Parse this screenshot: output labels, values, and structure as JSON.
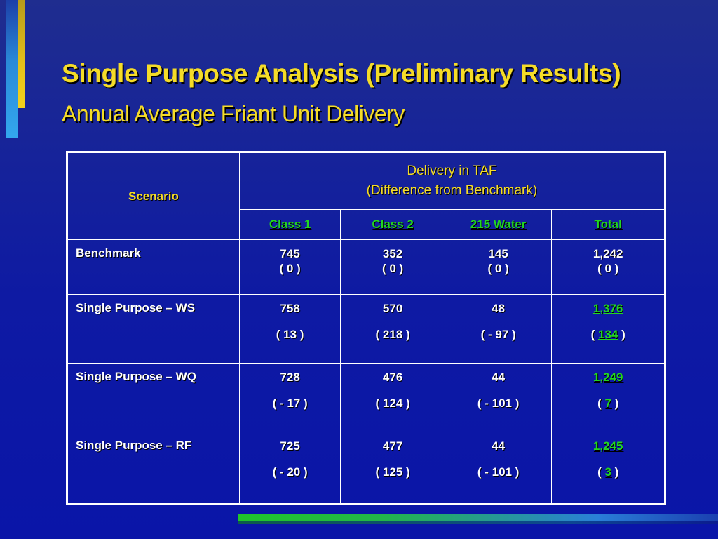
{
  "title": "Single Purpose Analysis (Preliminary Results)",
  "subtitle": "Annual Average Friant Unit Delivery",
  "table": {
    "scenario_header": "Scenario",
    "delivery_header_line1": "Delivery in TAF",
    "delivery_header_line2": "(Difference from Benchmark)",
    "columns": [
      "Class 1",
      "Class 2",
      "215 Water",
      "Total"
    ],
    "rows": [
      {
        "label": "Benchmark",
        "values": [
          "745",
          "352",
          "145",
          "1,242"
        ],
        "diffs": [
          "( 0 )",
          "( 0 )",
          "( 0 )",
          "( 0 )"
        ]
      },
      {
        "label": "Single Purpose – WS",
        "values": [
          "758",
          "570",
          "48",
          "1,376"
        ],
        "diffs": [
          "( 13 )",
          "( 218 )",
          "( - 97 )",
          "134"
        ]
      },
      {
        "label": "Single Purpose – WQ",
        "values": [
          "728",
          "476",
          "44",
          "1,249"
        ],
        "diffs": [
          "( - 17 )",
          "( 124 )",
          "( - 101 )",
          "7"
        ]
      },
      {
        "label": "Single Purpose – RF",
        "values": [
          "725",
          "477",
          "44",
          "1,245"
        ],
        "diffs": [
          "( - 20 )",
          "( 125 )",
          "( - 101 )",
          "3"
        ]
      }
    ]
  },
  "colors": {
    "title": "#f5dc28",
    "highlight": "#22d622",
    "background": "#0e1aa3"
  }
}
